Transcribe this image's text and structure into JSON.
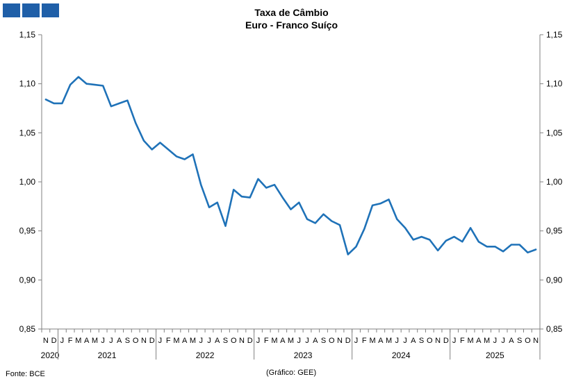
{
  "logo": {
    "color": "#1f5fa8"
  },
  "chart_data": {
    "type": "line",
    "title": "Taxa de Câmbio",
    "subtitle": "Euro - Franco Suíço",
    "ylim": [
      0.85,
      1.15
    ],
    "yticks": [
      "0,85",
      "0,90",
      "0,95",
      "1,00",
      "1,05",
      "1,10",
      "1,15"
    ],
    "ytick_values": [
      0.85,
      0.9,
      0.95,
      1.0,
      1.05,
      1.1,
      1.15
    ],
    "grid": false,
    "line_color": "#1f72b8",
    "month_labels": [
      "N",
      "D",
      "J",
      "F",
      "M",
      "A",
      "M",
      "J",
      "J",
      "A",
      "S",
      "O",
      "N",
      "D",
      "J",
      "F",
      "M",
      "A",
      "M",
      "J",
      "J",
      "A",
      "S",
      "O",
      "N",
      "D",
      "J",
      "F",
      "M",
      "A",
      "M",
      "J",
      "J",
      "A",
      "S",
      "O",
      "N",
      "D",
      "J",
      "F",
      "M",
      "A",
      "M",
      "J",
      "J",
      "A",
      "S",
      "O",
      "N",
      "D",
      "J",
      "F",
      "M",
      "A",
      "M",
      "J",
      "J",
      "A",
      "S",
      "O",
      "N"
    ],
    "years": [
      {
        "label": "2020",
        "start": 0,
        "count": 2
      },
      {
        "label": "2021",
        "start": 2,
        "count": 12
      },
      {
        "label": "2022",
        "start": 14,
        "count": 12
      },
      {
        "label": "2023",
        "start": 26,
        "count": 12
      },
      {
        "label": "2024",
        "start": 38,
        "count": 12
      },
      {
        "label": "2025",
        "start": 50,
        "count": 11
      }
    ],
    "series": [
      {
        "values": [
          1.084,
          1.08,
          1.08,
          1.099,
          1.107,
          1.1,
          1.099,
          1.098,
          1.077,
          1.08,
          1.083,
          1.06,
          1.042,
          1.033,
          1.04,
          1.033,
          1.026,
          1.023,
          1.028,
          0.997,
          0.974,
          0.979,
          0.955,
          0.992,
          0.985,
          0.984,
          1.003,
          0.994,
          0.997,
          0.984,
          0.972,
          0.979,
          0.962,
          0.958,
          0.967,
          0.96,
          0.956,
          0.926,
          0.934,
          0.952,
          0.976,
          0.978,
          0.982,
          0.962,
          0.953,
          0.941,
          0.944,
          0.941,
          0.93,
          0.94,
          0.944,
          0.939,
          0.953,
          0.939,
          0.934,
          0.934,
          0.929,
          0.936,
          0.936,
          0.928,
          0.931
        ]
      }
    ]
  },
  "footer": {
    "source": "Fonte: BCE",
    "credit": "(Gráfico: GEE)"
  }
}
